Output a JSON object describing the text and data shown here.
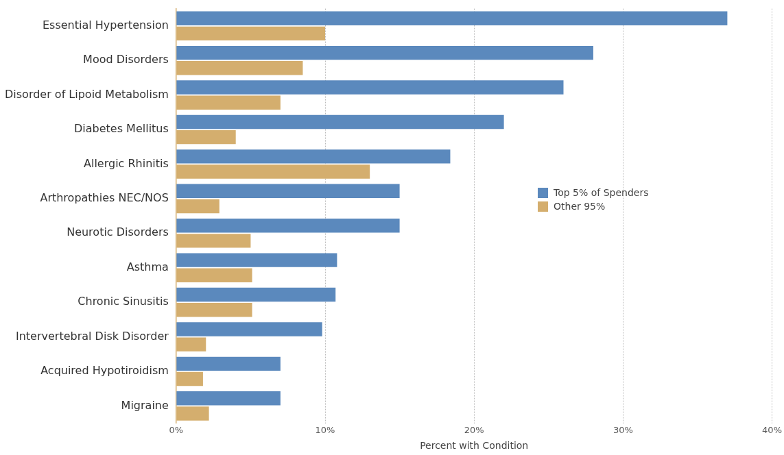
{
  "chart_data": {
    "type": "bar",
    "orientation": "horizontal",
    "xlabel": "Percent with Condition",
    "categories": [
      "Essential Hypertension",
      "Mood Disorders",
      "Disorder of Lipoid Metabolism",
      "Diabetes Mellitus",
      "Allergic Rhinitis",
      "Arthropathies NEC/NOS",
      "Neurotic Disorders",
      "Asthma",
      "Chronic Sinusitis",
      "Intervertebral Disk Disorder",
      "Acquired Hypotiroidism",
      "Migraine"
    ],
    "series": [
      {
        "name": "Top 5% of Spenders",
        "color": "#5b89bd",
        "values": [
          37,
          28,
          26,
          22,
          18.4,
          15,
          15,
          10.8,
          10.7,
          9.8,
          7,
          7
        ]
      },
      {
        "name": "Other 95%",
        "color": "#d4ae6e",
        "values": [
          10,
          8.5,
          7,
          4,
          13,
          2.9,
          5,
          5.1,
          5.1,
          2,
          1.8,
          2.2
        ]
      }
    ],
    "xlim": [
      0,
      40
    ],
    "xticks": [
      {
        "value": 0,
        "label": "0%"
      },
      {
        "value": 10,
        "label": "10%"
      },
      {
        "value": 20,
        "label": "20%"
      },
      {
        "value": 30,
        "label": "30%"
      },
      {
        "value": 40,
        "label": "40%"
      }
    ],
    "grid": "x",
    "legend": "right"
  }
}
